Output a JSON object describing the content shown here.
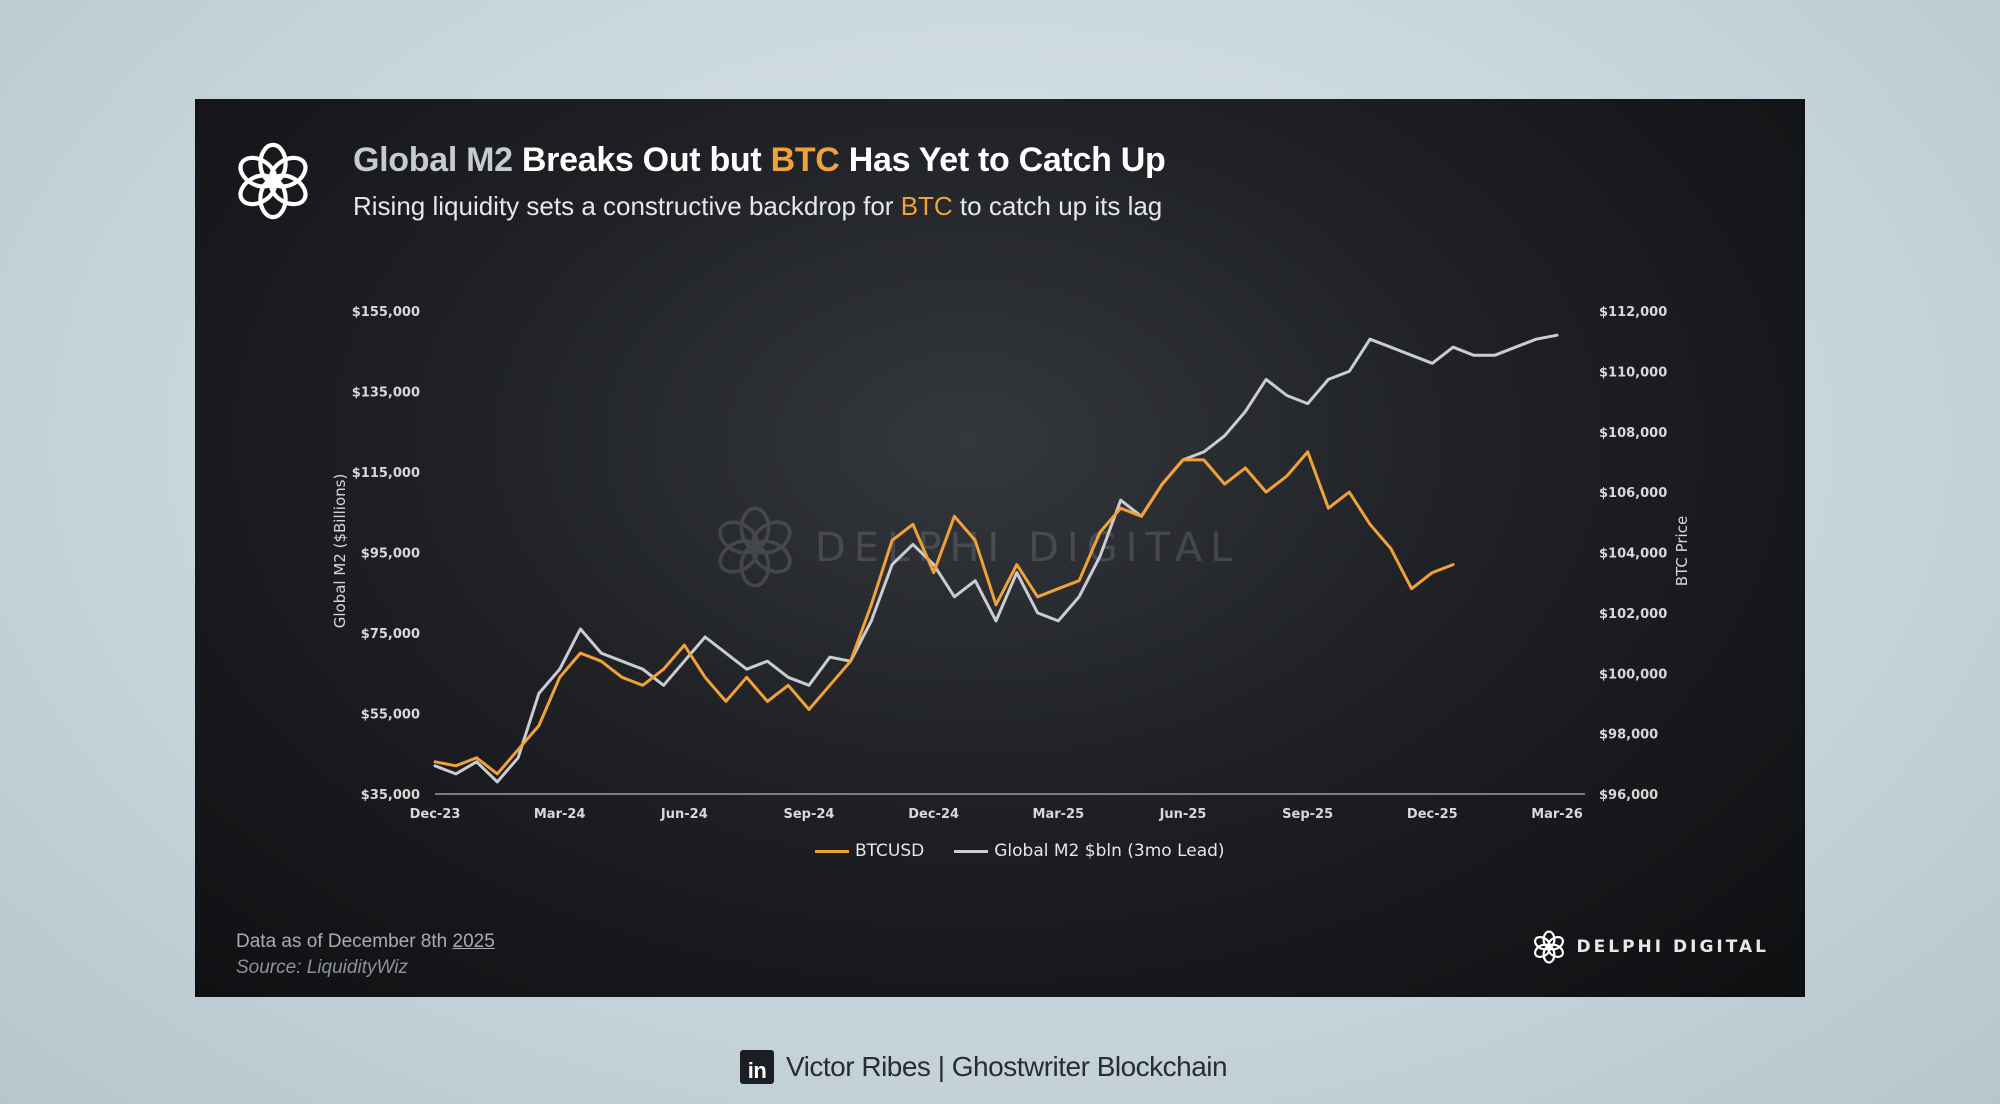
{
  "header": {
    "title_part1": "Global M2",
    "title_part2": " Breaks Out but ",
    "title_part3": "BTC",
    "title_part4": " Has Yet to Catch Up",
    "subtitle_part1": "Rising liquidity sets a constructive backdrop for ",
    "subtitle_part2": "BTC",
    "subtitle_part3": " to catch up its lag"
  },
  "chart_data": {
    "type": "line",
    "x_tick_labels": [
      "Dec-23",
      "Mar-24",
      "Jun-24",
      "Sep-24",
      "Dec-24",
      "Mar-25",
      "Jun-25",
      "Sep-25",
      "Dec-25",
      "Mar-26"
    ],
    "xlim": [
      0,
      27
    ],
    "y_left_label": "Global M2 ($Billions)",
    "y_left_ticks": [
      "$35,000",
      "$55,000",
      "$75,000",
      "$95,000",
      "$115,000",
      "$135,000",
      "$155,000"
    ],
    "y_left_lim": [
      35000,
      155000
    ],
    "y_right_label": "BTC Price",
    "y_right_ticks": [
      "$96,000",
      "$98,000",
      "$100,000",
      "$102,000",
      "$104,000",
      "$106,000",
      "$108,000",
      "$110,000",
      "$112,000"
    ],
    "y_right_lim": [
      96000,
      112000
    ],
    "legend_position": "bottom-center",
    "grid": false,
    "watermark": "DELPHI DIGITAL",
    "series": [
      {
        "name": "BTCUSD",
        "axis": "left",
        "color": "#f0a23a",
        "x": [
          0,
          0.5,
          1,
          1.5,
          2,
          2.5,
          3,
          3.5,
          4,
          4.5,
          5,
          5.5,
          6,
          6.5,
          7,
          7.5,
          8,
          8.5,
          9,
          9.5,
          10,
          10.5,
          11,
          11.5,
          12,
          12.5,
          13,
          13.5,
          14,
          14.5,
          15,
          15.5,
          16,
          16.5,
          17,
          17.5,
          18,
          18.5,
          19,
          19.5,
          20,
          20.5,
          21,
          21.5,
          22,
          22.5,
          23,
          23.5,
          24,
          24.5
        ],
        "values": [
          43000,
          42000,
          44000,
          40000,
          46000,
          52000,
          64000,
          70000,
          68000,
          64000,
          62000,
          66000,
          72000,
          64000,
          58000,
          64000,
          58000,
          62000,
          56000,
          62000,
          68000,
          82000,
          98000,
          102000,
          90000,
          104000,
          98000,
          82000,
          92000,
          84000,
          86000,
          88000,
          100000,
          106000,
          104000,
          112000,
          118000,
          118000,
          112000,
          116000,
          110000,
          114000,
          120000,
          106000,
          110000,
          102000,
          96000,
          86000,
          90000,
          92000
        ]
      },
      {
        "name": "Global M2 $bln (3mo Lead)",
        "axis": "left",
        "color": "#c9ccd1",
        "x": [
          0,
          0.5,
          1,
          1.5,
          2,
          2.5,
          3,
          3.5,
          4,
          4.5,
          5,
          5.5,
          6,
          6.5,
          7,
          7.5,
          8,
          8.5,
          9,
          9.5,
          10,
          10.5,
          11,
          11.5,
          12,
          12.5,
          13,
          13.5,
          14,
          14.5,
          15,
          15.5,
          16,
          16.5,
          17,
          17.5,
          18,
          18.5,
          19,
          19.5,
          20,
          20.5,
          21,
          21.5,
          22,
          22.5,
          23,
          23.5,
          24,
          24.5,
          25,
          25.5,
          26,
          26.5,
          27
        ],
        "values": [
          42000,
          40000,
          43000,
          38000,
          44000,
          60000,
          66000,
          76000,
          70000,
          68000,
          66000,
          62000,
          68000,
          74000,
          70000,
          66000,
          68000,
          64000,
          62000,
          69000,
          68000,
          78000,
          92000,
          97000,
          92000,
          84000,
          88000,
          78000,
          90000,
          80000,
          78000,
          84000,
          94000,
          108000,
          104000,
          112000,
          118000,
          120000,
          124000,
          130000,
          138000,
          134000,
          132000,
          138000,
          140000,
          148000,
          146000,
          144000,
          142000,
          146000,
          144000,
          144000,
          146000,
          148000,
          149000
        ]
      }
    ]
  },
  "footer": {
    "date_prefix": "Data as of December 8th ",
    "date_year": "2025",
    "source": "Source: LiquidityWiz",
    "brand": "DELPHI DIGITAL"
  },
  "credit": {
    "icon_text": "in",
    "text": "Victor Ribes | Ghostwriter Blockchain"
  },
  "colors": {
    "accent": "#f0a23a",
    "m2_line": "#c9ccd1",
    "card_bg": "#141518"
  },
  "icons": {
    "logo": "delphi-knot-icon",
    "credit": "linkedin-icon"
  }
}
